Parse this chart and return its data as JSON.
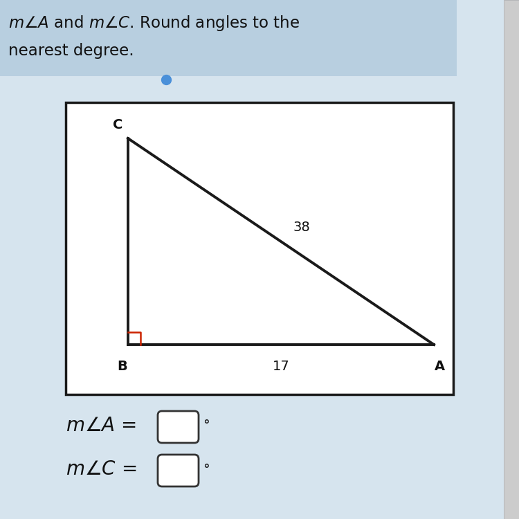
{
  "bg_color": "#d6e4ee",
  "box_bg": "#ffffff",
  "box_border": "#1a1a1a",
  "triangle_color": "#1a1a1a",
  "right_angle_color": "#cc2200",
  "label_B": "B",
  "label_A": "A",
  "label_C": "C",
  "label_side_bottom": "17",
  "label_side_hyp": "38",
  "text_line1": "$m\\angle A$ and $m\\angle C$. Round angles to the",
  "text_line2": "nearest degree.",
  "text_mA": "$m\\angle A$ =",
  "text_mC": "$m\\angle C$ =",
  "header_bg": "#b8cfe0",
  "header_text_color": "#111111",
  "answer_box_color": "#ffffff",
  "answer_box_border": "#333333",
  "blue_dot_color": "#4a90d9",
  "scrollbar_color": "#cccccc"
}
